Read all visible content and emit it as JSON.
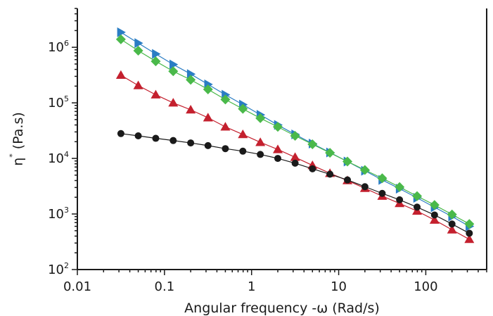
{
  "chart_data": {
    "type": "scatter",
    "title": "",
    "xlabel": "Angular frequency -ω (Rad/s)",
    "ylabel_parts": {
      "main": "η",
      "sup": "*",
      "unit": " (Pa.s)"
    },
    "x_scale": "log",
    "y_scale": "log",
    "xlim": [
      0.01,
      500
    ],
    "ylim": [
      100,
      5000000
    ],
    "x_ticks": [
      {
        "value": 0.01,
        "label": "0.01"
      },
      {
        "value": 0.1,
        "label": "0.1"
      },
      {
        "value": 1,
        "label": "1"
      },
      {
        "value": 10,
        "label": "10"
      },
      {
        "value": 100,
        "label": "100"
      }
    ],
    "y_ticks": [
      {
        "value": 100,
        "base": "10",
        "exp": "2"
      },
      {
        "value": 1000,
        "base": "10",
        "exp": "3"
      },
      {
        "value": 10000,
        "base": "10",
        "exp": "4"
      },
      {
        "value": 100000,
        "base": "10",
        "exp": "5"
      },
      {
        "value": 1000000,
        "base": "10",
        "exp": "6"
      }
    ],
    "grid": false,
    "legend": "none",
    "x": [
      0.0316,
      0.05,
      0.0794,
      0.126,
      0.2,
      0.316,
      0.5,
      0.794,
      1.26,
      2.0,
      3.16,
      5.0,
      7.94,
      12.6,
      20.0,
      31.6,
      50.0,
      79.4,
      126,
      200,
      316
    ],
    "series": [
      {
        "marker": "triangle-right",
        "color": "#2a7dc4",
        "values": [
          1860000,
          1190000,
          760000,
          490000,
          330000,
          215000,
          140000,
          93000,
          61000,
          40000,
          27000,
          18500,
          12800,
          8800,
          6000,
          4100,
          2850,
          1950,
          1320,
          900,
          600
        ]
      },
      {
        "marker": "diamond",
        "color": "#4ab94a",
        "values": [
          1390000,
          870000,
          560000,
          370000,
          260000,
          175000,
          115000,
          78000,
          53000,
          37000,
          25500,
          18000,
          12600,
          8800,
          6200,
          4400,
          3050,
          2100,
          1450,
          980,
          660
        ]
      },
      {
        "marker": "triangle-up",
        "color": "#c4202e",
        "values": [
          315000,
          205000,
          140000,
          100000,
          75000,
          54000,
          37000,
          27000,
          19500,
          14500,
          10500,
          7500,
          5400,
          4000,
          2900,
          2100,
          1550,
          1130,
          780,
          520,
          350
        ]
      },
      {
        "marker": "circle",
        "color": "#1a1a1a",
        "values": [
          28000,
          25500,
          23000,
          21000,
          19000,
          17000,
          15000,
          13500,
          11800,
          10000,
          8200,
          6500,
          5200,
          4100,
          3100,
          2350,
          1800,
          1330,
          960,
          660,
          450
        ]
      }
    ]
  }
}
